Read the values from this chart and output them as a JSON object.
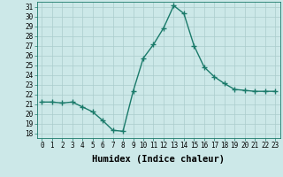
{
  "x": [
    0,
    1,
    2,
    3,
    4,
    5,
    6,
    7,
    8,
    9,
    10,
    11,
    12,
    13,
    14,
    15,
    16,
    17,
    18,
    19,
    20,
    21,
    22,
    23
  ],
  "y": [
    21.2,
    21.2,
    21.1,
    21.2,
    20.7,
    20.2,
    19.3,
    18.3,
    18.2,
    22.3,
    25.7,
    27.1,
    28.8,
    31.1,
    30.3,
    27.0,
    24.8,
    23.8,
    23.1,
    22.5,
    22.4,
    22.3,
    22.3,
    22.3
  ],
  "line_color": "#1a7a6a",
  "marker": "+",
  "markersize": 4.0,
  "linewidth": 1.0,
  "xlabel": "Humidex (Indice chaleur)",
  "xlim": [
    -0.5,
    23.5
  ],
  "ylim": [
    17.5,
    31.5
  ],
  "yticks": [
    18,
    19,
    20,
    21,
    22,
    23,
    24,
    25,
    26,
    27,
    28,
    29,
    30,
    31
  ],
  "xticks": [
    0,
    1,
    2,
    3,
    4,
    5,
    6,
    7,
    8,
    9,
    10,
    11,
    12,
    13,
    14,
    15,
    16,
    17,
    18,
    19,
    20,
    21,
    22,
    23
  ],
  "bg_color": "#cce8e8",
  "grid_color": "#aacccc",
  "tick_label_size": 5.5,
  "xlabel_size": 7.5
}
